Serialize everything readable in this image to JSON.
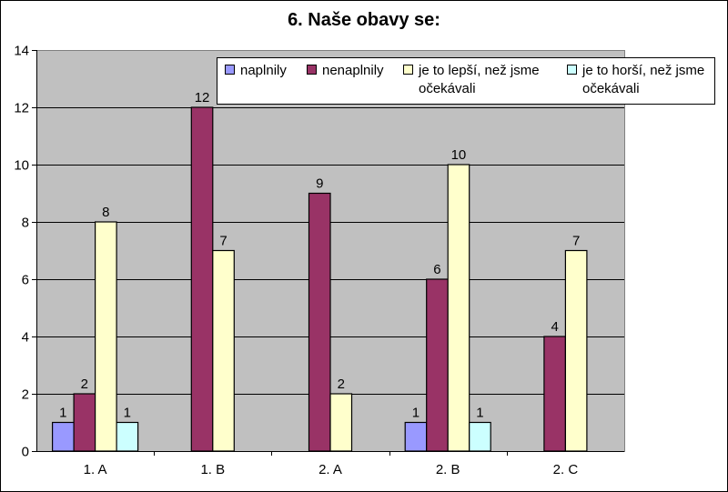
{
  "chart_data": {
    "type": "bar",
    "title": "6. Naše obavy se:",
    "categories": [
      "1. A",
      "1. B",
      "2. A",
      "2. B",
      "2. C"
    ],
    "series": [
      {
        "name": "naplnily",
        "color": "#9999ff",
        "values": [
          1,
          null,
          null,
          1,
          null
        ]
      },
      {
        "name": "nenaplnily",
        "color": "#993366",
        "values": [
          2,
          12,
          9,
          6,
          4
        ]
      },
      {
        "name": "je to lepší, než jsme očekávali",
        "color": "#ffffcc",
        "values": [
          8,
          7,
          2,
          10,
          7
        ]
      },
      {
        "name": "je to horší, než jsme očekávali",
        "color": "#ccffff",
        "values": [
          1,
          null,
          null,
          1,
          null
        ]
      }
    ],
    "ylim": [
      0,
      14
    ],
    "yticks": [
      0,
      2,
      4,
      6,
      8,
      10,
      12,
      14
    ],
    "grid": true,
    "plot_background": "#c0c0c0",
    "legend_position": "top-right"
  }
}
